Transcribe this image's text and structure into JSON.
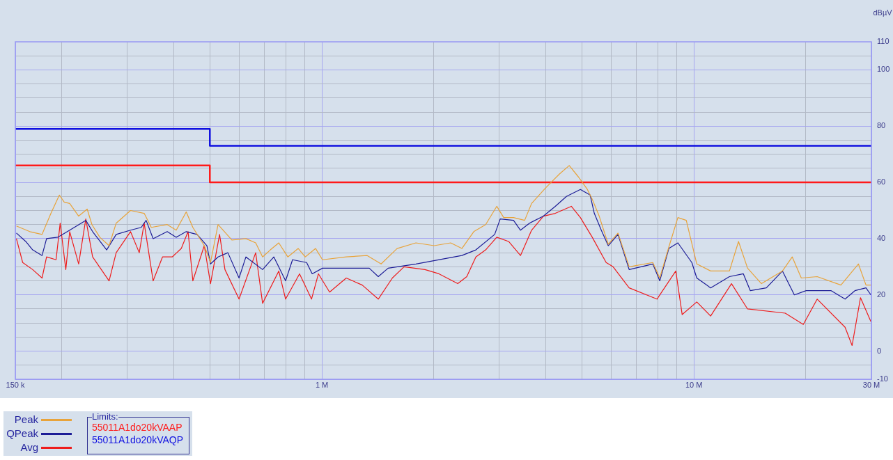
{
  "chart_data": {
    "type": "line",
    "ylabel": "dBµV",
    "legend_title": "Limits:",
    "legend": "bottom left",
    "grid": true,
    "log": "x",
    "marker": "none",
    "line_style": "solid",
    "xlim": [
      150000,
      30000000
    ],
    "xticks": [
      {
        "value": 150000,
        "label": "150 k"
      },
      {
        "value": 200000,
        "label": null
      },
      {
        "value": 300000,
        "label": null
      },
      {
        "value": 400000,
        "label": null
      },
      {
        "value": 500000,
        "label": null
      },
      {
        "value": 600000,
        "label": null
      },
      {
        "value": 700000,
        "label": null
      },
      {
        "value": 800000,
        "label": null
      },
      {
        "value": 900000,
        "label": null
      },
      {
        "value": 1000000,
        "label": "1 M"
      },
      {
        "value": 2000000,
        "label": null
      },
      {
        "value": 3000000,
        "label": null
      },
      {
        "value": 4000000,
        "label": null
      },
      {
        "value": 5000000,
        "label": null
      },
      {
        "value": 6000000,
        "label": null
      },
      {
        "value": 7000000,
        "label": null
      },
      {
        "value": 8000000,
        "label": null
      },
      {
        "value": 9000000,
        "label": null
      },
      {
        "value": 10000000,
        "label": "10 M"
      },
      {
        "value": 20000000,
        "label": null
      },
      {
        "value": 30000000,
        "label": "30 M"
      }
    ],
    "ylim": [
      -10,
      110
    ],
    "yticks": [
      -10,
      {
        "value": -5,
        "label": null
      },
      0,
      {
        "value": 5,
        "label": null
      },
      {
        "value": 10,
        "label": null
      },
      {
        "value": 15,
        "label": null
      },
      20,
      {
        "value": 25,
        "label": null
      },
      {
        "value": 30,
        "label": null
      },
      {
        "value": 35,
        "label": null
      },
      40,
      {
        "value": 45,
        "label": null
      },
      {
        "value": 50,
        "label": null
      },
      {
        "value": 55,
        "label": null
      },
      60,
      {
        "value": 65,
        "label": null
      },
      {
        "value": 70,
        "label": null
      },
      {
        "value": 75,
        "label": null
      },
      80,
      {
        "value": 85,
        "label": null
      },
      {
        "value": 90,
        "label": null
      },
      {
        "value": 95,
        "label": null
      },
      100,
      {
        "value": 105,
        "label": null
      },
      110
    ],
    "series": [
      {
        "name": "Peak",
        "color": "#e8a33a",
        "x": [
          151000,
          164000,
          177000,
          187000,
          197000,
          203000,
          210000,
          222000,
          234000,
          241000,
          253000,
          268000,
          280000,
          306000,
          333000,
          348000,
          384000,
          406000,
          432000,
          450000,
          483000,
          502000,
          526000,
          573000,
          625000,
          664000,
          693000,
          727000,
          766000,
          810000,
          864000,
          902000,
          962000,
          1004000,
          1163000,
          1324000,
          1443000,
          1593000,
          1790000,
          2003000,
          2220000,
          2379000,
          2561000,
          2756000,
          2952000,
          3082000,
          3275000,
          3508000,
          3662000,
          3992000,
          4352000,
          4623000,
          4890000,
          5172000,
          5330000,
          5565000,
          5885000,
          6252000,
          6698000,
          7755000,
          8096000,
          8563000,
          9057000,
          9539000,
          10180000,
          11090000,
          12460000,
          13180000,
          13940000,
          15190000,
          17300000,
          18380000,
          19440000,
          21450000,
          24840000,
          27680000,
          29010000,
          29910000
        ],
        "values": [
          44.5,
          42.5,
          41.5,
          49,
          55.5,
          53,
          52.5,
          48,
          50.5,
          45,
          40.5,
          37.5,
          45.5,
          50,
          49,
          44,
          45,
          43,
          49.5,
          44,
          37.5,
          31.5,
          45,
          39.5,
          40,
          38.5,
          33.5,
          36,
          38.5,
          33.5,
          36.5,
          33.5,
          36.5,
          32.5,
          33.5,
          34,
          31,
          36.5,
          38.5,
          37.5,
          38.5,
          36.5,
          42.5,
          45,
          51.5,
          47.5,
          47.5,
          46.5,
          52.5,
          58,
          63,
          66,
          62,
          57.5,
          54,
          48,
          38,
          42,
          30,
          31.5,
          26,
          37,
          47.5,
          46.5,
          31,
          28.5,
          28.5,
          39,
          29.5,
          24,
          28.5,
          33.5,
          26,
          26.5,
          23.5,
          31,
          23.5,
          23.5
        ]
      },
      {
        "name": "QPeak",
        "color": "#1c1c96",
        "x": [
          151000,
          160000,
          167000,
          177000,
          182000,
          195000,
          210000,
          232000,
          242000,
          264000,
          280000,
          306000,
          327000,
          337000,
          352000,
          384000,
          406000,
          432000,
          462000,
          491000,
          502000,
          526000,
          559000,
          599000,
          625000,
          693000,
          743000,
          799000,
          834000,
          910000,
          942000,
          1004000,
          1341000,
          1418000,
          1507000,
          1790000,
          2379000,
          2594000,
          2914000,
          3016000,
          3275000,
          3419000,
          3615000,
          3941000,
          4241000,
          4544000,
          4953000,
          5262000,
          5399000,
          5637000,
          5885000,
          6252000,
          6698000,
          7755000,
          8096000,
          8563000,
          9057000,
          9873000,
          10180000,
          11090000,
          12460000,
          13580000,
          14180000,
          15660000,
          17300000,
          18620000,
          20030000,
          23390000,
          25490000,
          27090000,
          29010000,
          29910000
        ],
        "values": [
          42,
          39,
          36,
          34,
          40,
          40.5,
          43,
          46.5,
          42.5,
          36,
          41.5,
          43,
          44,
          46.5,
          40,
          42.5,
          40.5,
          42.5,
          41.5,
          37.5,
          31,
          33.5,
          35,
          26,
          33.5,
          29,
          33.5,
          25,
          32.5,
          31.5,
          27.5,
          29.5,
          29.5,
          26.5,
          29.5,
          31,
          34,
          36,
          41.5,
          47,
          46.5,
          43,
          45.5,
          48,
          51.5,
          55,
          57.5,
          55.5,
          49,
          43,
          37.5,
          41.5,
          29,
          31,
          25,
          36.5,
          38.5,
          31.5,
          26,
          22.5,
          26.5,
          27.5,
          21.5,
          22.5,
          28.5,
          20,
          21.5,
          21.5,
          18.5,
          21.5,
          22.5,
          20
        ]
      },
      {
        "name": "Avg",
        "color": "#ee1c1c",
        "x": [
          151000,
          157000,
          167000,
          177000,
          182000,
          193000,
          198000,
          205000,
          210000,
          222000,
          232000,
          242000,
          268000,
          280000,
          306000,
          323000,
          333000,
          352000,
          373000,
          396000,
          419000,
          437000,
          450000,
          483000,
          502000,
          531000,
          549000,
          599000,
          664000,
          693000,
          766000,
          799000,
          871000,
          938000,
          979000,
          1049000,
          1163000,
          1284000,
          1418000,
          1547000,
          1663000,
          1893000,
          2064000,
          2319000,
          2452000,
          2594000,
          2756000,
          2952000,
          3177000,
          3419000,
          3662000,
          3941000,
          4241000,
          4683000,
          4953000,
          5330000,
          5810000,
          6065000,
          6698000,
          7957000,
          8940000,
          9300000,
          10180000,
          11090000,
          12620000,
          13940000,
          17600000,
          19680000,
          21450000,
          25490000,
          26620000,
          28040000,
          29910000
        ],
        "values": [
          40,
          31.5,
          29,
          26,
          33.5,
          32.5,
          45.5,
          29,
          42.5,
          31,
          47,
          33.5,
          25,
          35,
          42.5,
          35,
          45.5,
          25,
          33.5,
          33.5,
          36.5,
          42.5,
          25,
          37.5,
          24,
          41.5,
          29,
          18.5,
          35,
          17,
          28.5,
          18.5,
          27.5,
          18.5,
          27.5,
          21,
          26,
          23.5,
          18.5,
          26,
          30,
          29,
          27.5,
          24,
          26.5,
          33.5,
          36,
          40.5,
          39,
          34,
          43,
          48,
          49,
          51.5,
          47.5,
          40.5,
          31.5,
          30,
          22.5,
          18.5,
          28.5,
          13,
          17.5,
          12.5,
          24,
          15,
          13.5,
          9.5,
          18.5,
          8.5,
          2,
          19,
          10.5
        ]
      },
      {
        "name": "55011A1do20kVAAP",
        "type": "step",
        "color": "#ff1a1a",
        "x": [
          150000,
          500000,
          30000000
        ],
        "values": [
          66,
          60,
          60
        ]
      },
      {
        "name": "55011A1do20kVAQP",
        "type": "step",
        "color": "#1010e0",
        "x": [
          150000,
          500000,
          30000000
        ],
        "values": [
          79,
          73,
          73
        ]
      }
    ]
  }
}
